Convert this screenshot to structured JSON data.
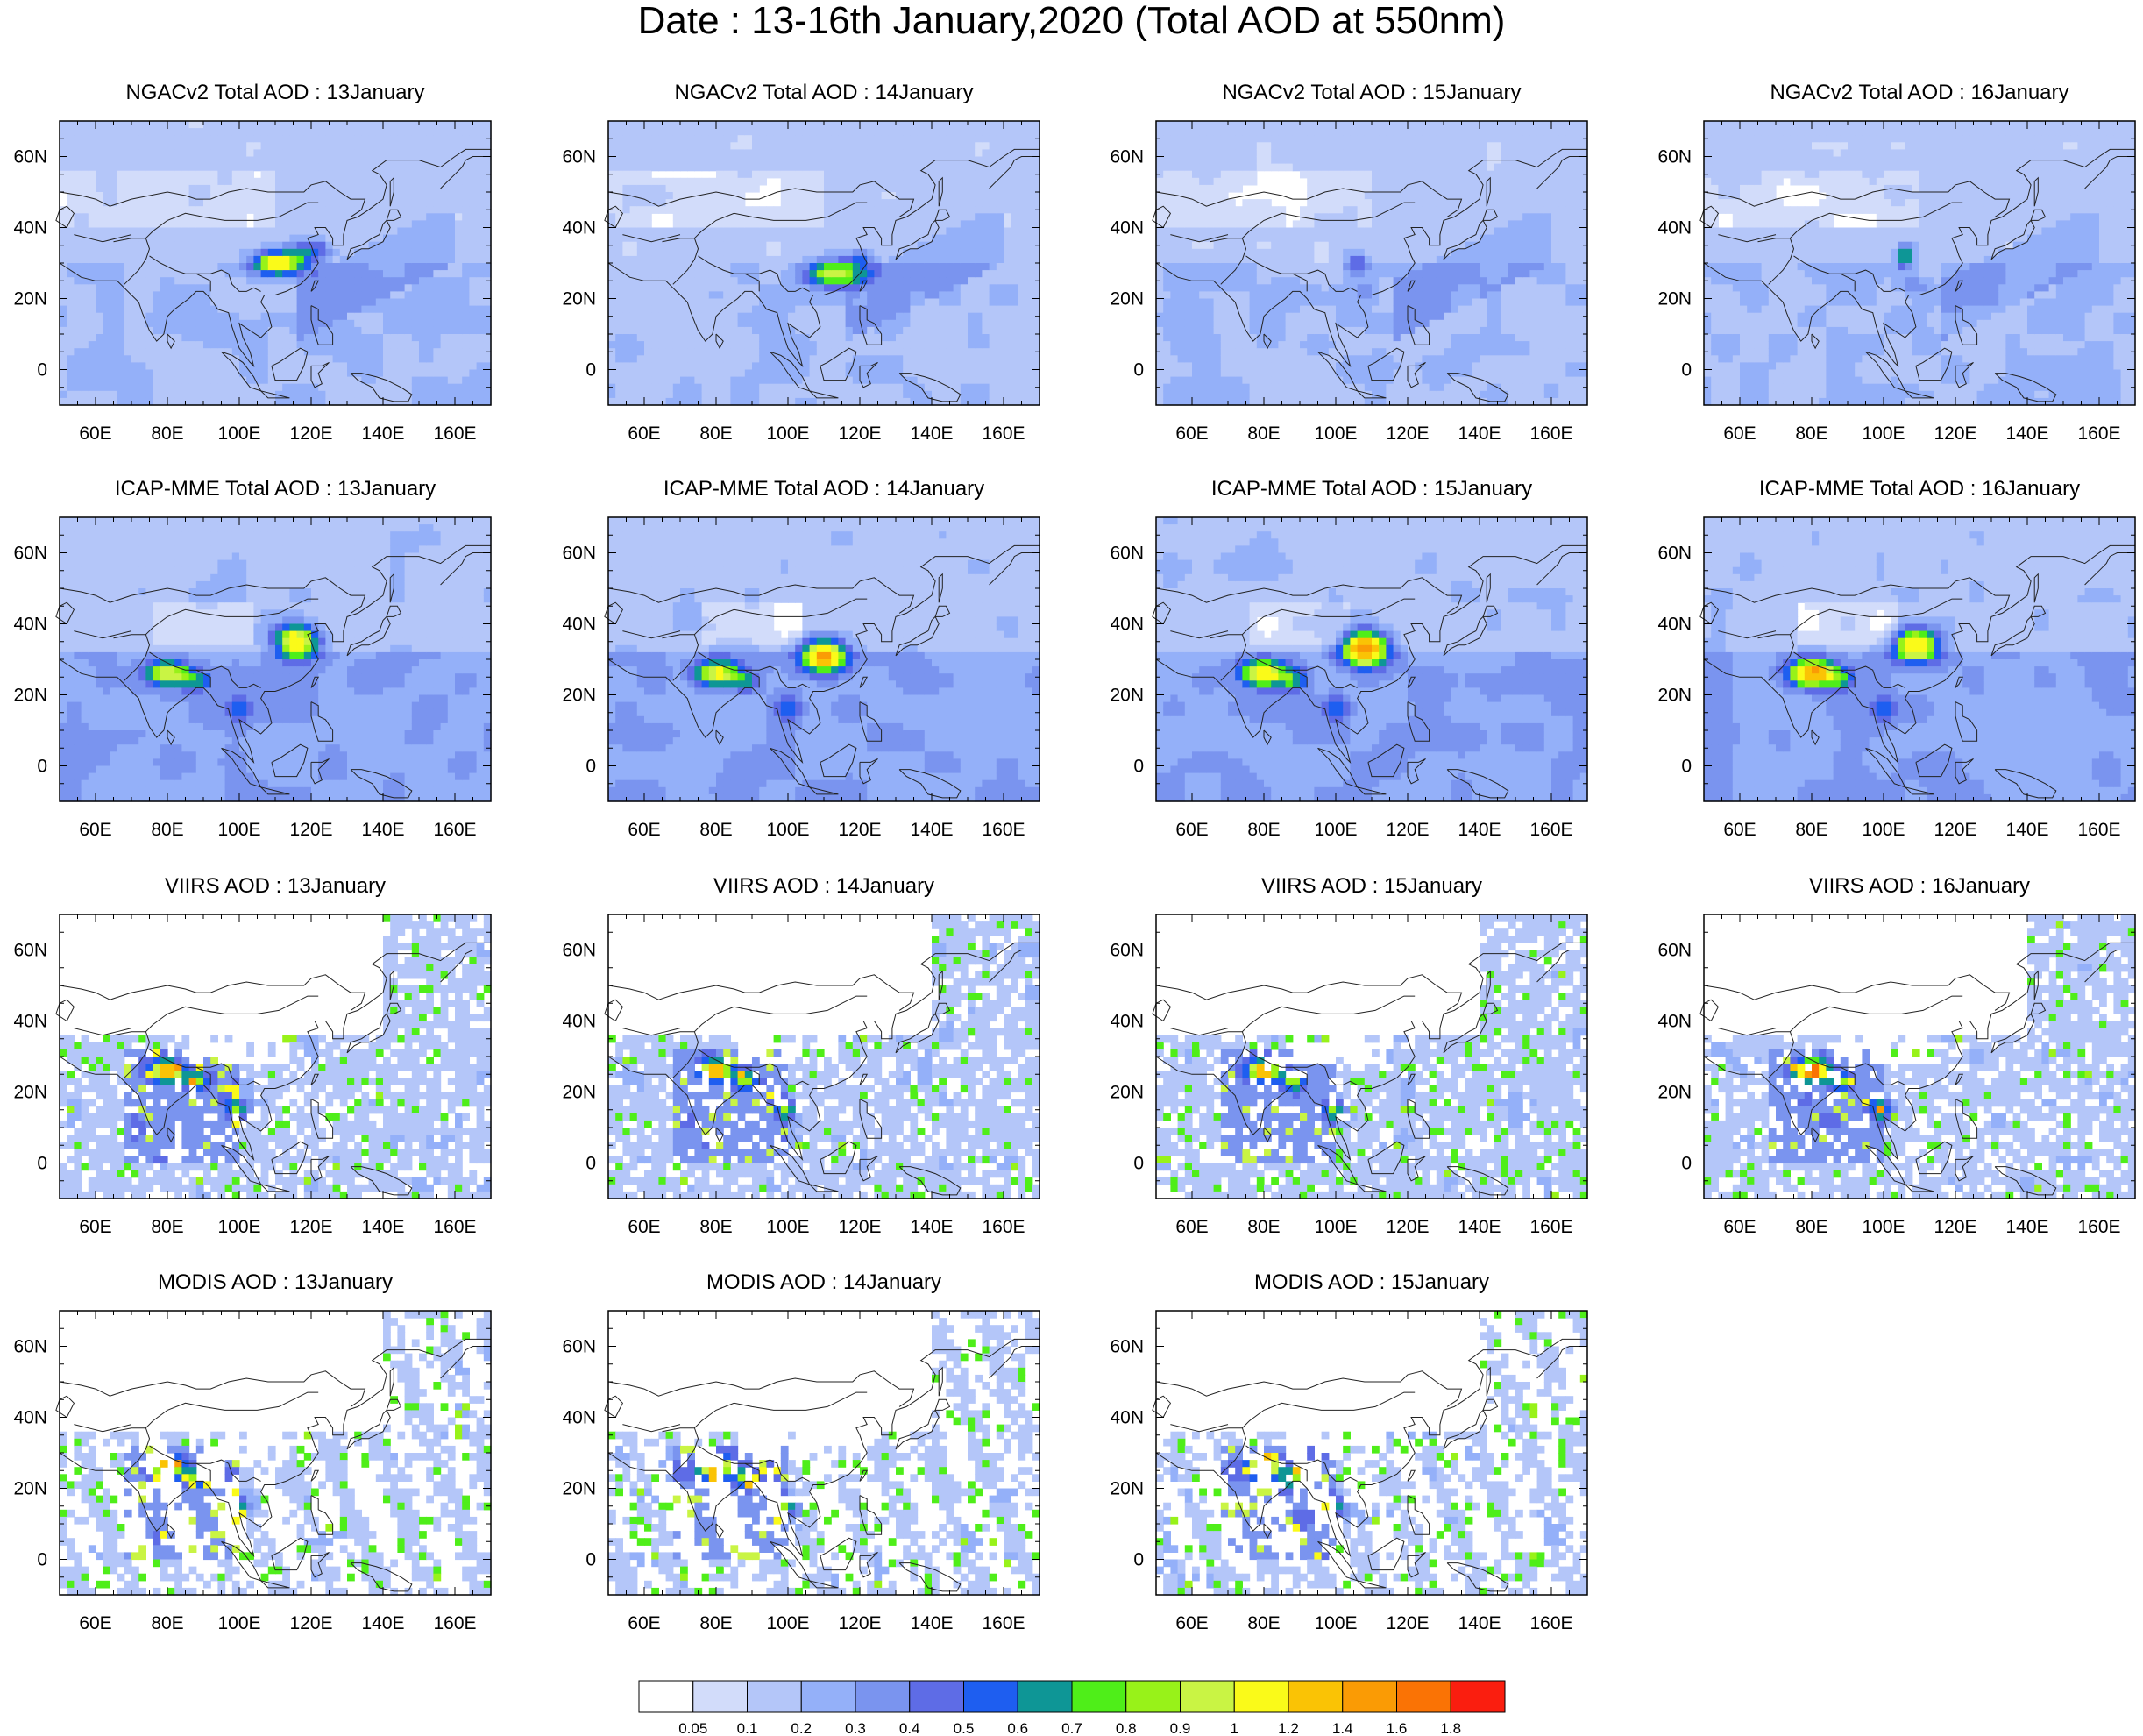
{
  "title": "Date : 13-16th January,2020 (Total AOD at 550nm)",
  "chart_data": {
    "type": "heatmap",
    "variable": "Total AOD at 550nm",
    "x_axis": {
      "ticks": [
        60,
        80,
        100,
        120,
        140,
        160
      ],
      "tick_labels": [
        "60E",
        "80E",
        "100E",
        "120E",
        "140E",
        "160E"
      ],
      "range": [
        50,
        170
      ]
    },
    "y_axis": {
      "ticks": [
        0,
        20,
        40,
        60
      ],
      "tick_labels": [
        "0",
        "20N",
        "40N",
        "60N"
      ],
      "range": [
        -10,
        70
      ]
    },
    "colorbar": {
      "levels": [
        "0.05",
        "0.1",
        "0.2",
        "0.3",
        "0.4",
        "0.5",
        "0.6",
        "0.7",
        "0.8",
        "0.9",
        "1",
        "1.2",
        "1.4",
        "1.6",
        "1.8"
      ],
      "colors": [
        "#ffffff",
        "#d2dcfa",
        "#b4c6f9",
        "#94b0f9",
        "#7a94ef",
        "#5e6ce6",
        "#1e5ef0",
        "#0e9696",
        "#4fee19",
        "#98f219",
        "#c9f444",
        "#fafa19",
        "#fac305",
        "#fa9b05",
        "#fa7305",
        "#fa1e0f"
      ]
    },
    "panels": [
      {
        "title": "NGACv2 Total AOD : 13January",
        "model": "NGACv2",
        "date": "13January"
      },
      {
        "title": "NGACv2 Total AOD : 14January",
        "model": "NGACv2",
        "date": "14January"
      },
      {
        "title": "NGACv2 Total AOD : 15January",
        "model": "NGACv2",
        "date": "15January"
      },
      {
        "title": "NGACv2 Total AOD : 16January",
        "model": "NGACv2",
        "date": "16January"
      },
      {
        "title": "ICAP-MME Total AOD : 13January",
        "model": "ICAP-MME",
        "date": "13January"
      },
      {
        "title": "ICAP-MME Total AOD : 14January",
        "model": "ICAP-MME",
        "date": "14January"
      },
      {
        "title": "ICAP-MME Total AOD : 15January",
        "model": "ICAP-MME",
        "date": "15January"
      },
      {
        "title": "ICAP-MME Total AOD : 16January",
        "model": "ICAP-MME",
        "date": "16January"
      },
      {
        "title": "VIIRS AOD : 13January",
        "model": "VIIRS",
        "date": "13January"
      },
      {
        "title": "VIIRS AOD : 14January",
        "model": "VIIRS",
        "date": "14January"
      },
      {
        "title": "VIIRS AOD : 15January",
        "model": "VIIRS",
        "date": "15January"
      },
      {
        "title": "VIIRS AOD : 16January",
        "model": "VIIRS",
        "date": "16January"
      },
      {
        "title": "MODIS AOD : 13January",
        "model": "MODIS",
        "date": "13January"
      },
      {
        "title": "MODIS AOD : 14January",
        "model": "MODIS",
        "date": "14January"
      },
      {
        "title": "MODIS AOD : 15January",
        "model": "MODIS",
        "date": "15January"
      }
    ]
  }
}
